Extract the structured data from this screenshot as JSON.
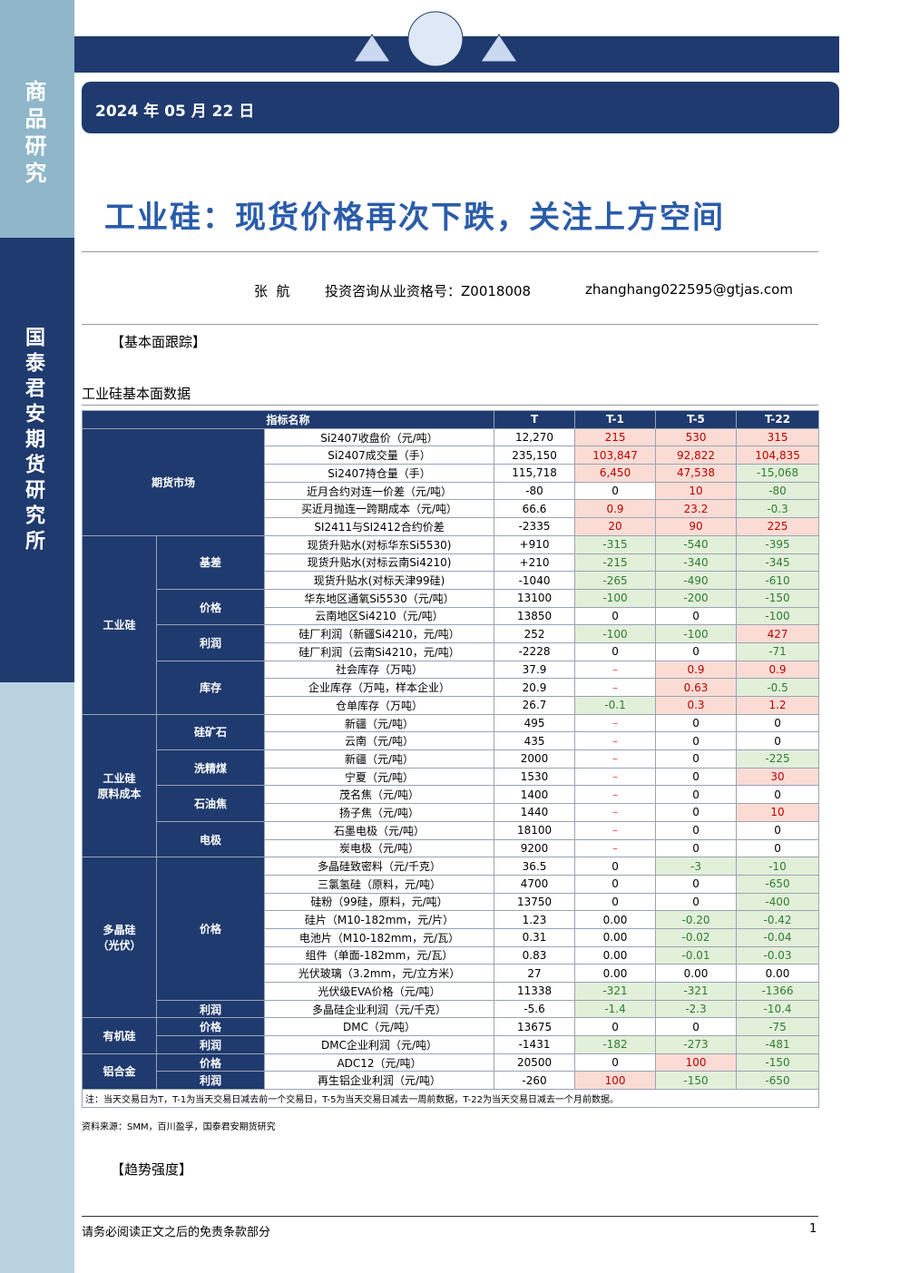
{
  "sidebar": {
    "top": "商品研究",
    "bottom": "国泰君安期货研究所"
  },
  "header": {
    "date": "2024 年 05 月 22 日",
    "title": "工业硅：现货价格再次下跌，关注上方空间"
  },
  "author": {
    "name": "张  航",
    "license": "投资咨询从业资格号：Z0018008",
    "email": "zhanghang022595@gtjas.com"
  },
  "section": "【基本面跟踪】",
  "table": {
    "caption": "工业硅基本面数据",
    "header": [
      "指标名称",
      "T",
      "T-1",
      "T-5",
      "T-22"
    ],
    "groups": [
      {
        "name": "期货市场",
        "rows": [
          [
            "Si2407收盘价（元/吨）",
            "12,270",
            "215",
            "530",
            "315"
          ],
          [
            "Si2407成交量（手）",
            "235,150",
            "103,847",
            "92,822",
            "104,835"
          ],
          [
            "Si2407持仓量（手）",
            "115,718",
            "6,450",
            "47,538",
            "-15,068"
          ],
          [
            "近月合约对连一价差（元/吨）",
            "-80",
            "0",
            "10",
            "-80"
          ],
          [
            "买近月抛连一跨期成本（元/吨）",
            "66.6",
            "0.9",
            "23.2",
            "-0.3"
          ],
          [
            "SI2411与SI2412合约价差",
            "-2335",
            "20",
            "90",
            "225"
          ]
        ]
      },
      {
        "name": "工业硅",
        "subgroups": [
          {
            "name": "基差",
            "rows": [
              [
                "现货升贴水(对标华东Si5530)",
                "+910",
                "-315",
                "-540",
                "-395"
              ],
              [
                "现货升贴水(对标云南Si4210)",
                "+210",
                "-215",
                "-340",
                "-345"
              ],
              [
                "现货升贴水(对标天津99硅)",
                "-1040",
                "-265",
                "-490",
                "-610"
              ]
            ]
          },
          {
            "name": "价格",
            "rows": [
              [
                "华东地区通氧Si5530（元/吨）",
                "13100",
                "-100",
                "-200",
                "-150"
              ],
              [
                "云南地区Si4210（元/吨）",
                "13850",
                "0",
                "0",
                "-100"
              ]
            ]
          },
          {
            "name": "利润",
            "rows": [
              [
                "硅厂利润（新疆Si4210，元/吨）",
                "252",
                "-100",
                "-100",
                "427"
              ],
              [
                "硅厂利润（云南Si4210，元/吨）",
                "-2228",
                "0",
                "0",
                "-71"
              ]
            ]
          },
          {
            "name": "库存",
            "rows": [
              [
                "社会库存（万吨）",
                "37.9",
                "–",
                "0.9",
                "0.9"
              ],
              [
                "企业库存（万吨，样本企业）",
                "20.9",
                "–",
                "0.63",
                "-0.5"
              ],
              [
                "仓单库存（万吨）",
                "26.7",
                "-0.1",
                "0.3",
                "1.2"
              ]
            ]
          }
        ]
      },
      {
        "name": "工业硅\n原料成本",
        "subgroups": [
          {
            "name": "硅矿石",
            "rows": [
              [
                "新疆（元/吨）",
                "495",
                "–",
                "0",
                "0"
              ],
              [
                "云南（元/吨）",
                "435",
                "–",
                "0",
                "0"
              ]
            ]
          },
          {
            "name": "洗精煤",
            "rows": [
              [
                "新疆（元/吨）",
                "2000",
                "–",
                "0",
                "-225"
              ],
              [
                "宁夏（元/吨）",
                "1530",
                "–",
                "0",
                "30"
              ]
            ]
          },
          {
            "name": "石油焦",
            "rows": [
              [
                "茂名焦（元/吨）",
                "1400",
                "–",
                "0",
                "0"
              ],
              [
                "扬子焦（元/吨）",
                "1440",
                "–",
                "0",
                "10"
              ]
            ]
          },
          {
            "name": "电极",
            "rows": [
              [
                "石墨电极（元/吨）",
                "18100",
                "–",
                "0",
                "0"
              ],
              [
                "炭电极（元/吨）",
                "9200",
                "–",
                "0",
                "0"
              ]
            ]
          }
        ]
      },
      {
        "name": "多晶硅\n（光伏）",
        "subgroups": [
          {
            "name": "价格",
            "rows": [
              [
                "多晶硅致密料（元/千克）",
                "36.5",
                "0",
                "-3",
                "-10"
              ],
              [
                "三氯氢硅（原料，元/吨）",
                "4700",
                "0",
                "0",
                "-650"
              ],
              [
                "硅粉（99硅，原料，元/吨）",
                "13750",
                "0",
                "0",
                "-400"
              ],
              [
                "硅片（M10-182mm，元/片）",
                "1.23",
                "0.00",
                "-0.20",
                "-0.42"
              ],
              [
                "电池片（M10-182mm，元/瓦）",
                "0.31",
                "0.00",
                "-0.02",
                "-0.04"
              ],
              [
                "组件（单面-182mm，元/瓦）",
                "0.83",
                "0.00",
                "-0.01",
                "-0.03"
              ],
              [
                "光伏玻璃（3.2mm，元/立方米）",
                "27",
                "0.00",
                "0.00",
                "0.00"
              ],
              [
                "光伏级EVA价格（元/吨）",
                "11338",
                "-321",
                "-321",
                "-1366"
              ]
            ]
          },
          {
            "name": "利润",
            "rows": [
              [
                "多晶硅企业利润（元/千克）",
                "-5.6",
                "-1.4",
                "-2.3",
                "-10.4"
              ]
            ]
          }
        ]
      },
      {
        "name": "有机硅",
        "subgroups": [
          {
            "name": "价格",
            "rows": [
              [
                "DMC（元/吨）",
                "13675",
                "0",
                "0",
                "-75"
              ]
            ]
          },
          {
            "name": "利润",
            "rows": [
              [
                "DMC企业利润（元/吨）",
                "-1431",
                "-182",
                "-273",
                "-481"
              ]
            ]
          }
        ]
      },
      {
        "name": "铝合金",
        "subgroups": [
          {
            "name": "价格",
            "rows": [
              [
                "ADC12（元/吨）",
                "20500",
                "0",
                "100",
                "-150"
              ]
            ]
          },
          {
            "name": "利润",
            "rows": [
              [
                "再生铝企业利润（元/吨）",
                "-260",
                "100",
                "-150",
                "-650"
              ]
            ]
          }
        ]
      }
    ],
    "note": "注：当天交易日为T，T-1为当天交易日减去前一个交易日，T-5为当天交易日减去一周前数据，T-22为当天交易日减去一个月前数据。"
  },
  "source": "资料来源：SMM，百川盈孚，国泰君安期货研究",
  "section2": "【趋势强度】",
  "footer": {
    "disclaimer": "请务必阅读正文之后的免责条款部分",
    "page": "1"
  }
}
